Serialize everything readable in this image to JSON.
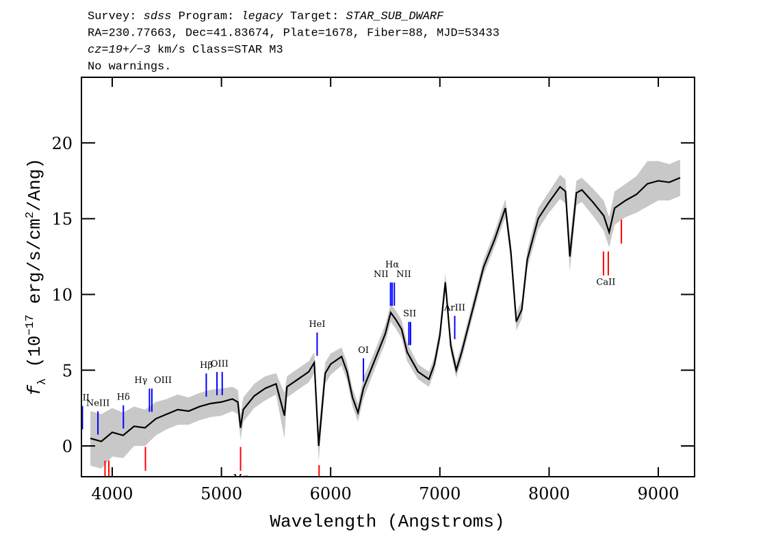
{
  "chart_data": {
    "type": "line",
    "header_lines": [
      [
        {
          "text": "Survey: "
        },
        {
          "text": "sdss",
          "italic": true
        },
        {
          "text": " Program: "
        },
        {
          "text": "legacy",
          "italic": true
        },
        {
          "text": " Target: "
        },
        {
          "text": "STAR_SUB_DWARF",
          "italic": true
        }
      ],
      [
        {
          "text": "RA=230.77663, Dec=41.83674, Plate=1678, Fiber=88, MJD=53433"
        }
      ],
      [
        {
          "text": "cz=19+/−3",
          "italic": true
        },
        {
          "text": " km/s Class=STAR M3"
        }
      ],
      [
        {
          "text": "No warnings."
        }
      ]
    ],
    "xlabel": "Wavelength (Angstroms)",
    "ylabel": [
      {
        "text": "f",
        "italic": true
      },
      {
        "text": "λ",
        "sub": true
      },
      {
        "text": " (10"
      },
      {
        "text": "−17",
        "sup": true
      },
      {
        "text": " erg/s/cm"
      },
      {
        "text": "2",
        "sup": true
      },
      {
        "text": "/Ang)"
      }
    ],
    "xlim": [
      3718,
      9332
    ],
    "ylim": [
      -2.03,
      24.33
    ],
    "xticks": [
      4000,
      5000,
      6000,
      7000,
      8000,
      9000
    ],
    "yticks": [
      0,
      5,
      10,
      15,
      20
    ],
    "color": "#000000",
    "error_color": "#c8c8c8",
    "x": [
      3800,
      3900,
      4000,
      4100,
      4200,
      4300,
      4400,
      4500,
      4600,
      4700,
      4800,
      4900,
      5000,
      5100,
      5150,
      5175,
      5200,
      5300,
      5400,
      5500,
      5577,
      5600,
      5700,
      5800,
      5850,
      5890,
      5950,
      6000,
      6100,
      6150,
      6200,
      6250,
      6300,
      6400,
      6500,
      6550,
      6600,
      6650,
      6700,
      6800,
      6900,
      6950,
      7000,
      7050,
      7100,
      7150,
      7200,
      7300,
      7400,
      7500,
      7600,
      7650,
      7700,
      7750,
      7800,
      7900,
      8000,
      8100,
      8150,
      8190,
      8250,
      8300,
      8400,
      8500,
      8550,
      8600,
      8700,
      8800,
      8900,
      9000,
      9100,
      9200
    ],
    "values": [
      0.5,
      0.3,
      0.9,
      0.7,
      1.3,
      1.2,
      1.8,
      2.1,
      2.4,
      2.3,
      2.6,
      2.8,
      2.9,
      3.1,
      2.9,
      1.2,
      2.4,
      3.3,
      3.8,
      4.1,
      2.0,
      3.9,
      4.4,
      4.9,
      5.5,
      0.0,
      4.8,
      5.4,
      5.9,
      4.9,
      3.2,
      2.2,
      3.8,
      5.6,
      7.4,
      8.8,
      8.3,
      7.7,
      6.2,
      4.9,
      4.4,
      5.4,
      7.3,
      10.8,
      6.6,
      5.0,
      6.2,
      9.0,
      11.8,
      13.6,
      15.7,
      12.8,
      8.2,
      9.0,
      12.3,
      15.0,
      16.1,
      17.1,
      16.8,
      12.5,
      16.7,
      16.9,
      16.1,
      15.2,
      14.1,
      15.7,
      16.2,
      16.6,
      17.3,
      17.5,
      17.4,
      17.7
    ],
    "errors": [
      1.8,
      1.8,
      1.6,
      1.5,
      1.3,
      1.2,
      1.1,
      1.0,
      1.0,
      0.9,
      0.9,
      0.9,
      0.9,
      0.8,
      0.8,
      0.8,
      0.8,
      0.8,
      0.8,
      0.7,
      1.5,
      0.7,
      0.7,
      0.7,
      0.7,
      1.0,
      0.7,
      0.7,
      0.6,
      0.6,
      0.6,
      0.6,
      0.7,
      0.6,
      0.6,
      0.6,
      0.6,
      0.6,
      0.6,
      0.5,
      0.5,
      0.5,
      0.5,
      0.6,
      0.5,
      0.5,
      0.5,
      0.5,
      0.5,
      0.5,
      0.6,
      0.6,
      0.6,
      0.6,
      0.6,
      0.7,
      0.7,
      0.8,
      0.8,
      1.0,
      0.8,
      0.8,
      0.9,
      1.0,
      1.0,
      1.1,
      1.1,
      1.2,
      1.5,
      1.3,
      1.2,
      1.2
    ],
    "lines": [
      {
        "label": "OII",
        "wavelengths": [
          3727
        ],
        "color": "#0000ff",
        "kind": "emission"
      },
      {
        "label": "NeIII",
        "wavelengths": [
          3869
        ],
        "color": "#0000ff",
        "kind": "emission"
      },
      {
        "label": "Hδ",
        "wavelengths": [
          4102
        ],
        "color": "#0000ff",
        "kind": "emission"
      },
      {
        "label": "Hγ",
        "wavelengths": [
          4341
        ],
        "color": "#0000ff",
        "kind": "emission"
      },
      {
        "label": "OIII",
        "wavelengths": [
          4363
        ],
        "color": "#0000ff",
        "kind": "emission"
      },
      {
        "label": "Hβ",
        "wavelengths": [
          4861
        ],
        "color": "#0000ff",
        "kind": "emission"
      },
      {
        "label": "OIII",
        "wavelengths": [
          4959,
          5007
        ],
        "color": "#0000ff",
        "kind": "emission"
      },
      {
        "label": "HeI",
        "wavelengths": [
          5876
        ],
        "color": "#0000ff",
        "kind": "emission"
      },
      {
        "label": "OI",
        "wavelengths": [
          6300
        ],
        "color": "#0000ff",
        "kind": "emission"
      },
      {
        "label": "NII",
        "wavelengths": [
          6548
        ],
        "color": "#0000ff",
        "kind": "emission"
      },
      {
        "label": "Hα",
        "wavelengths": [
          6563
        ],
        "color": "#0000ff",
        "kind": "emission"
      },
      {
        "label": "NII",
        "wavelengths": [
          6583
        ],
        "color": "#0000ff",
        "kind": "emission"
      },
      {
        "label": "SII",
        "wavelengths": [
          6716,
          6731
        ],
        "color": "#0000ff",
        "kind": "emission"
      },
      {
        "label": "ArIII",
        "wavelengths": [
          7136
        ],
        "color": "#0000ff",
        "kind": "emission"
      },
      {
        "label": null,
        "wavelengths": [
          3934,
          3969
        ],
        "color": "#ff0000",
        "kind": "absorption"
      },
      {
        "label": null,
        "wavelengths": [
          4304
        ],
        "color": "#ff0000",
        "kind": "absorption"
      },
      {
        "label": "Mg",
        "wavelengths": [
          5175
        ],
        "color": "#ff0000",
        "kind": "absorption"
      },
      {
        "label": null,
        "wavelengths": [
          5894
        ],
        "color": "#ff0000",
        "kind": "absorption"
      },
      {
        "label": "CaII",
        "wavelengths": [
          8498,
          8542
        ],
        "color": "#ff0000",
        "kind": "absorption"
      },
      {
        "label": null,
        "wavelengths": [
          8662
        ],
        "color": "#ff0000",
        "kind": "absorption"
      }
    ]
  }
}
